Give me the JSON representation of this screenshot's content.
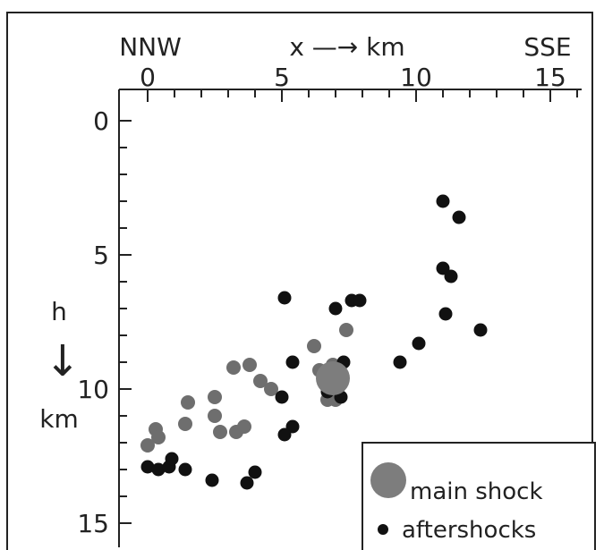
{
  "chart_data": {
    "type": "scatter",
    "title": "",
    "xlabel": "x —→ km",
    "ylabel": "h ↓ km",
    "x_direction_labels": {
      "left": "NNW",
      "right": "SSE"
    },
    "xlim": [
      -1,
      16
    ],
    "ylim": [
      0,
      16
    ],
    "y_axis_inverted": true,
    "x_ticks": [
      0,
      5,
      10,
      15
    ],
    "y_ticks": [
      0,
      5,
      10,
      15
    ],
    "grid": false,
    "legend": {
      "placement": "bottom-right",
      "entries": [
        "main shock",
        "aftershocks"
      ]
    },
    "colors": {
      "aftershock": "#111111",
      "other_events": "#6e6e6e",
      "main_shock": "#7d7d7d",
      "axis": "#222222"
    },
    "series": [
      {
        "name": "main shock",
        "points": [
          {
            "x": 6.9,
            "y": 9.6
          }
        ]
      },
      {
        "name": "aftershocks",
        "points": [
          {
            "x": 11.0,
            "y": 3.0
          },
          {
            "x": 11.6,
            "y": 3.6
          },
          {
            "x": 11.0,
            "y": 5.5
          },
          {
            "x": 11.3,
            "y": 5.8
          },
          {
            "x": 5.1,
            "y": 6.6
          },
          {
            "x": 7.6,
            "y": 6.7
          },
          {
            "x": 7.9,
            "y": 6.7
          },
          {
            "x": 7.0,
            "y": 7.0
          },
          {
            "x": 11.1,
            "y": 7.2
          },
          {
            "x": 12.4,
            "y": 7.8
          },
          {
            "x": 10.1,
            "y": 8.3
          },
          {
            "x": 9.4,
            "y": 9.0
          },
          {
            "x": 5.4,
            "y": 9.0
          },
          {
            "x": 7.3,
            "y": 9.0
          },
          {
            "x": 7.2,
            "y": 9.6
          },
          {
            "x": 6.7,
            "y": 10.1
          },
          {
            "x": 5.0,
            "y": 10.3
          },
          {
            "x": 7.2,
            "y": 10.3
          },
          {
            "x": 5.4,
            "y": 11.4
          },
          {
            "x": 5.1,
            "y": 11.7
          },
          {
            "x": 0.0,
            "y": 12.9
          },
          {
            "x": 0.4,
            "y": 13.0
          },
          {
            "x": 0.8,
            "y": 12.9
          },
          {
            "x": 0.9,
            "y": 12.6
          },
          {
            "x": 1.4,
            "y": 13.0
          },
          {
            "x": 2.4,
            "y": 13.4
          },
          {
            "x": 4.0,
            "y": 13.1
          },
          {
            "x": 3.7,
            "y": 13.5
          }
        ]
      },
      {
        "name": "",
        "points": [
          {
            "x": 7.4,
            "y": 7.8
          },
          {
            "x": 6.2,
            "y": 8.4
          },
          {
            "x": 1.5,
            "y": 10.5
          },
          {
            "x": 2.5,
            "y": 10.3
          },
          {
            "x": 3.2,
            "y": 9.2
          },
          {
            "x": 3.8,
            "y": 9.1
          },
          {
            "x": 4.2,
            "y": 9.7
          },
          {
            "x": 4.6,
            "y": 10.0
          },
          {
            "x": 2.5,
            "y": 11.0
          },
          {
            "x": 2.7,
            "y": 11.6
          },
          {
            "x": 1.4,
            "y": 11.3
          },
          {
            "x": 3.3,
            "y": 11.6
          },
          {
            "x": 3.6,
            "y": 11.4
          },
          {
            "x": 0.3,
            "y": 11.5
          },
          {
            "x": 0.4,
            "y": 11.8
          },
          {
            "x": 0.0,
            "y": 12.1
          },
          {
            "x": 6.4,
            "y": 9.3
          },
          {
            "x": 6.9,
            "y": 9.1
          },
          {
            "x": 7.1,
            "y": 9.6
          },
          {
            "x": 6.7,
            "y": 10.4
          },
          {
            "x": 7.0,
            "y": 10.4
          }
        ]
      }
    ]
  }
}
